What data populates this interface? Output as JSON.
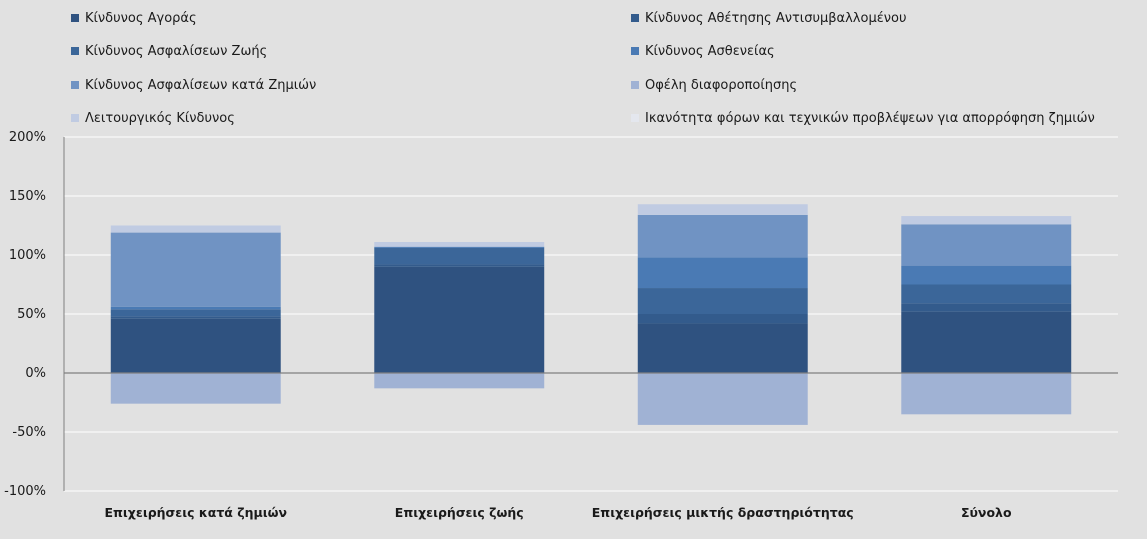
{
  "chart_data": {
    "type": "bar",
    "stacked": true,
    "categories": [
      "Επιχειρήσεις κατά ζημιών",
      "Επιχειρήσεις ζωής",
      "Επιχειρήσεις μικτής δραστηριότητας",
      "Σύνολο"
    ],
    "ylim": [
      -100,
      200
    ],
    "yticks": [
      200,
      150,
      100,
      50,
      0,
      -50,
      -100
    ],
    "ytick_labels": [
      "200%",
      "150%",
      "100%",
      "50%",
      "0%",
      "-50%",
      "-100%"
    ],
    "grid": true,
    "legend_position": "top",
    "series": [
      {
        "name": "Κίνδυνος Αγοράς",
        "color": "#2f5280",
        "values": [
          46,
          90,
          42,
          52
        ]
      },
      {
        "name": "Κίνδυνος Αθέτησης Αντισυμβαλλομένου",
        "color": "#335b8c",
        "values": [
          2,
          2,
          8,
          7
        ]
      },
      {
        "name": "Κίνδυνος Ασφαλίσεων Ζωής",
        "color": "#3b6699",
        "values": [
          6,
          14,
          22,
          16
        ]
      },
      {
        "name": "Κίνδυνος Ασθενείας",
        "color": "#4a7ab4",
        "values": [
          2,
          1,
          26,
          16
        ]
      },
      {
        "name": "Κίνδυνος Ασφαλίσεων κατά Ζημιών",
        "color": "#7093c3",
        "values": [
          63,
          0,
          36,
          35
        ]
      },
      {
        "name": "Οφέλη διαφοροποίησης",
        "color": "#a0b2d4",
        "values": [
          -26,
          -13,
          -44,
          -35
        ]
      },
      {
        "name": "Λειτουργικός Κίνδυνος",
        "color": "#c0cbe2",
        "values": [
          6,
          4,
          9,
          7
        ]
      },
      {
        "name": "Ικανότητα φόρων και τεχνικών προβλέψεων για απορρόφηση ζημιών",
        "color": "#e4e7ee",
        "values": [
          0,
          0,
          0,
          0
        ]
      }
    ]
  }
}
